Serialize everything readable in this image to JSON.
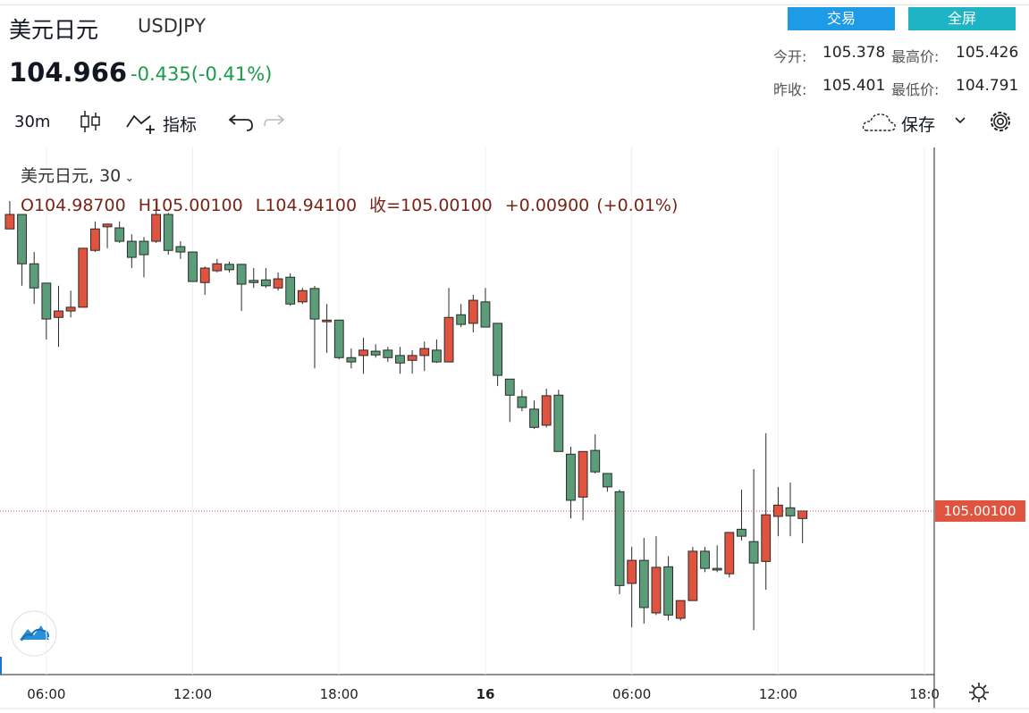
{
  "header": {
    "name": "美元日元",
    "symbol": "USDJPY",
    "price": 104.966,
    "change": "-0.435(-0.41%)",
    "buttons": [
      "交易",
      "全屏"
    ],
    "stats": [
      {
        "label": "今开:",
        "value": 105.378
      },
      {
        "label": "最高价:",
        "value": 105.426
      },
      {
        "label": "昨收:",
        "value": 105.401
      },
      {
        "label": "最低价:",
        "value": 104.791
      }
    ]
  },
  "toolbar": {
    "interval": "30m",
    "indicators": "指标",
    "save": "保存"
  },
  "chart_data": {
    "type": "candlestick",
    "legend_title": "美元日元, 30",
    "ohlc_legend": [
      "O104.98700",
      "H105.00100",
      "L104.94100",
      "收=105.00100",
      "+0.00900",
      "(+0.01%)"
    ],
    "x": [
      4.5,
      5,
      5.5,
      6,
      6.5,
      7,
      7.5,
      8,
      8.5,
      9,
      9.5,
      10,
      10.5,
      11,
      11.5,
      12,
      12.5,
      13,
      13.5,
      14,
      14.5,
      15,
      15.5,
      16,
      16.5,
      17,
      17.5,
      18,
      18.5,
      19,
      19.5,
      20,
      20.5,
      21,
      21.5,
      22,
      22.5,
      23,
      23.5,
      24,
      24.5,
      25,
      25.5,
      26,
      26.5,
      27,
      27.5,
      28,
      28.5,
      29,
      29.5,
      30,
      30.5,
      31,
      31.5,
      32,
      32.5,
      33,
      33.5,
      34,
      34.5,
      35,
      35.5,
      36,
      36.5,
      37
    ],
    "open": [
      105.527,
      105.554,
      105.462,
      105.426,
      105.362,
      105.374,
      105.381,
      105.487,
      105.531,
      105.529,
      105.504,
      105.504,
      105.504,
      105.554,
      105.494,
      105.484,
      105.427,
      105.449,
      105.461,
      105.461,
      105.431,
      105.432,
      105.417,
      105.437,
      105.391,
      105.416,
      105.354,
      105.357,
      105.287,
      105.291,
      105.299,
      105.301,
      105.291,
      105.282,
      105.291,
      105.301,
      105.279,
      105.367,
      105.351,
      105.391,
      105.351,
      105.247,
      105.214,
      105.191,
      105.161,
      105.217,
      105.107,
      105.027,
      105.114,
      105.071,
      105.037,
      104.866,
      104.909,
      104.811,
      104.897,
      104.801,
      104.834,
      104.926,
      104.894,
      104.884,
      104.967,
      104.944,
      104.907,
      104.991,
      105.007,
      104.987
    ],
    "high": [
      105.579,
      105.554,
      105.484,
      105.426,
      105.421,
      105.412,
      105.491,
      105.541,
      105.537,
      105.541,
      105.517,
      105.512,
      105.579,
      105.557,
      105.504,
      105.484,
      105.457,
      105.471,
      105.466,
      105.461,
      105.454,
      105.454,
      105.446,
      105.444,
      105.417,
      105.421,
      105.387,
      105.357,
      105.304,
      105.324,
      105.312,
      105.307,
      105.307,
      105.301,
      105.317,
      105.321,
      105.417,
      105.387,
      105.404,
      105.417,
      105.351,
      105.247,
      105.227,
      105.207,
      105.229,
      105.227,
      105.121,
      105.112,
      105.144,
      105.071,
      105.041,
      104.934,
      104.951,
      104.954,
      104.917,
      104.834,
      104.934,
      104.934,
      104.937,
      104.961,
      105.041,
      105.079,
      105.146,
      105.046,
      105.054,
      105.001
    ],
    "low": [
      105.527,
      105.421,
      105.387,
      105.321,
      105.307,
      105.362,
      105.381,
      105.484,
      105.491,
      105.501,
      105.454,
      105.437,
      105.501,
      105.479,
      105.471,
      105.429,
      105.404,
      105.446,
      105.446,
      105.374,
      105.417,
      105.417,
      105.412,
      105.384,
      105.387,
      105.267,
      105.296,
      105.284,
      105.267,
      105.257,
      105.287,
      105.279,
      105.257,
      105.257,
      105.262,
      105.277,
      105.279,
      105.344,
      105.334,
      105.344,
      105.234,
      105.167,
      105.187,
      105.154,
      105.157,
      105.112,
      104.987,
      104.984,
      105.071,
      105.037,
      104.846,
      104.784,
      104.791,
      104.807,
      104.797,
      104.797,
      104.834,
      104.887,
      104.887,
      104.877,
      104.946,
      104.779,
      104.854,
      104.954,
      104.954,
      104.941
    ],
    "close": [
      105.554,
      105.462,
      105.417,
      105.359,
      105.374,
      105.381,
      105.491,
      105.527,
      105.536,
      105.504,
      105.474,
      105.479,
      105.554,
      105.487,
      105.484,
      105.429,
      105.454,
      105.462,
      105.451,
      105.424,
      105.427,
      105.421,
      105.434,
      105.387,
      105.412,
      105.359,
      105.357,
      105.287,
      105.279,
      105.301,
      105.292,
      105.287,
      105.277,
      105.291,
      105.304,
      105.279,
      105.362,
      105.349,
      105.394,
      105.344,
      105.254,
      105.217,
      105.194,
      105.157,
      105.216,
      105.112,
      105.021,
      105.112,
      105.074,
      105.046,
      104.862,
      104.909,
      104.821,
      104.896,
      104.807,
      104.834,
      104.926,
      104.894,
      104.891,
      104.961,
      104.954,
      104.904,
      104.994,
      105.012,
      104.992,
      105.001
    ],
    "up_color": "#e0533f",
    "down_color": "#5b9d78",
    "xlim": [
      4.1,
      42.4
    ],
    "ylim": [
      104.696,
      105.679
    ],
    "xticks": [
      {
        "value": 6,
        "label": "06:00"
      },
      {
        "value": 12,
        "label": "12:00"
      },
      {
        "value": 18,
        "label": "18:00"
      },
      {
        "value": 24,
        "label": "16"
      },
      {
        "value": 30,
        "label": "06:00"
      },
      {
        "value": 36,
        "label": "12:00"
      },
      {
        "value": 42,
        "label": "18:0"
      }
    ],
    "grid": true,
    "last_price_label": "105.00100"
  }
}
